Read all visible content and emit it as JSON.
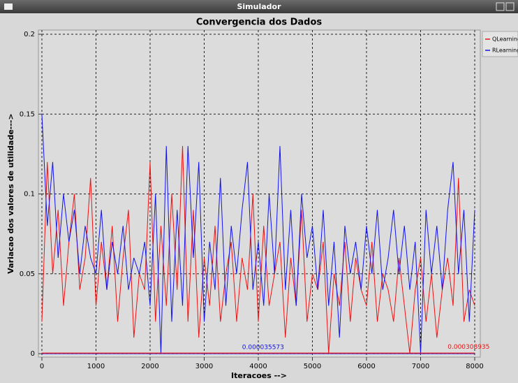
{
  "window": {
    "title": "Simulador"
  },
  "chart_data": {
    "type": "line",
    "title": "Convergencia dos Dados",
    "x_label": "Iteracoes -->",
    "y_label": "Variacao dos valores de utilidade--->",
    "xlim": [
      0,
      8000
    ],
    "ylim": [
      0,
      0.2
    ],
    "xticks": [
      0,
      1000,
      2000,
      3000,
      4000,
      5000,
      6000,
      7000,
      8000
    ],
    "yticks": [
      0,
      0.05,
      0.1,
      0.15,
      0.2
    ],
    "grid": true,
    "legend": "right",
    "x": [
      0,
      100,
      200,
      300,
      400,
      500,
      600,
      700,
      800,
      900,
      1000,
      1100,
      1200,
      1300,
      1400,
      1500,
      1600,
      1700,
      1800,
      1900,
      2000,
      2100,
      2200,
      2300,
      2400,
      2500,
      2600,
      2700,
      2800,
      2900,
      3000,
      3100,
      3200,
      3300,
      3400,
      3500,
      3600,
      3700,
      3800,
      3900,
      4000,
      4100,
      4200,
      4300,
      4400,
      4500,
      4600,
      4700,
      4800,
      4900,
      5000,
      5100,
      5200,
      5300,
      5400,
      5500,
      5600,
      5700,
      5800,
      5900,
      6000,
      6100,
      6200,
      6300,
      6400,
      6500,
      6600,
      6700,
      6800,
      6900,
      7000,
      7100,
      7200,
      7300,
      7400,
      7500,
      7600,
      7700,
      7800,
      7900,
      8000
    ],
    "series": [
      {
        "name": "QLearning",
        "color": "#ee1111",
        "values": [
          0.02,
          0.12,
          0.05,
          0.09,
          0.03,
          0.07,
          0.1,
          0.04,
          0.06,
          0.11,
          0.03,
          0.07,
          0.04,
          0.08,
          0.02,
          0.06,
          0.09,
          0.01,
          0.05,
          0.04,
          0.12,
          0.02,
          0.08,
          0.03,
          0.1,
          0.04,
          0.13,
          0.02,
          0.09,
          0.01,
          0.06,
          0.03,
          0.08,
          0.02,
          0.05,
          0.07,
          0.02,
          0.06,
          0.04,
          0.1,
          0.02,
          0.08,
          0.03,
          0.05,
          0.07,
          0.01,
          0.06,
          0.03,
          0.09,
          0.02,
          0.05,
          0.04,
          0.07,
          0.0,
          0.05,
          0.03,
          0.07,
          0.02,
          0.06,
          0.04,
          0.03,
          0.07,
          0.02,
          0.05,
          0.04,
          0.02,
          0.06,
          0.03,
          0.0,
          0.04,
          0.06,
          0.02,
          0.05,
          0.01,
          0.04,
          0.06,
          0.03,
          0.11,
          0.02,
          0.04,
          0.03
        ]
      },
      {
        "name": "RLearning",
        "color": "#1111ee",
        "values": [
          0.15,
          0.08,
          0.12,
          0.06,
          0.1,
          0.07,
          0.09,
          0.05,
          0.08,
          0.06,
          0.05,
          0.09,
          0.04,
          0.07,
          0.05,
          0.08,
          0.04,
          0.06,
          0.05,
          0.07,
          0.03,
          0.1,
          0.0,
          0.13,
          0.02,
          0.09,
          0.03,
          0.13,
          0.06,
          0.12,
          0.02,
          0.07,
          0.04,
          0.11,
          0.03,
          0.08,
          0.05,
          0.09,
          0.12,
          0.04,
          0.07,
          0.03,
          0.1,
          0.05,
          0.13,
          0.04,
          0.09,
          0.03,
          0.1,
          0.06,
          0.08,
          0.04,
          0.09,
          0.03,
          0.07,
          0.01,
          0.08,
          0.05,
          0.07,
          0.04,
          0.08,
          0.05,
          0.09,
          0.04,
          0.06,
          0.09,
          0.05,
          0.08,
          0.04,
          0.07,
          0.0,
          0.09,
          0.05,
          0.08,
          0.04,
          0.09,
          0.12,
          0.05,
          0.09,
          0.02,
          0.09
        ]
      }
    ],
    "min_lines": [
      {
        "value": 3.5573e-05,
        "x": 3700,
        "color": "#1111ee"
      },
      {
        "value": 0.000308935,
        "x": 7500,
        "color": "#ee1111"
      }
    ]
  }
}
